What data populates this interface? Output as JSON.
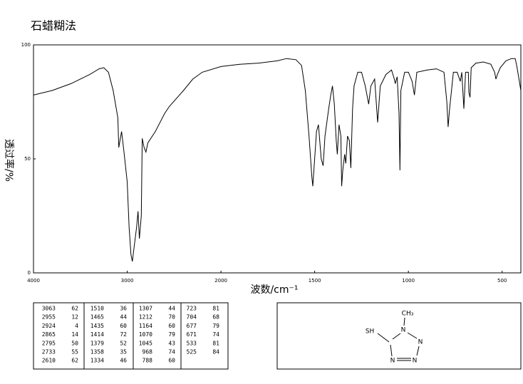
{
  "chart_data": {
    "type": "line",
    "title": "石蜡糊法",
    "x_label": "波数/cm⁻¹",
    "y_label": "透过率/%",
    "color": "#000000",
    "xlim": [
      4000,
      400
    ],
    "xticks": [
      4000,
      3000,
      2000,
      1500,
      1000,
      500
    ],
    "ylim": [
      0,
      100
    ],
    "yticks": [
      0,
      50,
      100
    ],
    "x": [
      4000,
      3800,
      3600,
      3400,
      3300,
      3250,
      3200,
      3150,
      3100,
      3090,
      3060,
      3040,
      3000,
      2980,
      2960,
      2945,
      2930,
      2900,
      2885,
      2870,
      2850,
      2840,
      2820,
      2800,
      2780,
      2700,
      2650,
      2600,
      2550,
      2400,
      2300,
      2200,
      2000,
      1900,
      1800,
      1700,
      1650,
      1600,
      1570,
      1550,
      1530,
      1515,
      1510,
      1500,
      1490,
      1480,
      1470,
      1465,
      1455,
      1445,
      1435,
      1425,
      1414,
      1405,
      1395,
      1385,
      1379,
      1370,
      1360,
      1356,
      1350,
      1340,
      1334,
      1325,
      1315,
      1307,
      1298,
      1290,
      1270,
      1250,
      1230,
      1212,
      1200,
      1180,
      1164,
      1150,
      1120,
      1090,
      1075,
      1070,
      1060,
      1050,
      1045,
      1040,
      1020,
      1000,
      980,
      968,
      955,
      900,
      850,
      810,
      795,
      788,
      780,
      760,
      740,
      723,
      715,
      704,
      695,
      680,
      677,
      671,
      665,
      640,
      600,
      560,
      540,
      533,
      525,
      510,
      480,
      450,
      430,
      420,
      400
    ],
    "values": [
      78,
      80,
      83,
      87,
      89.5,
      90,
      88,
      80,
      68,
      55,
      62,
      55,
      40,
      20,
      8,
      5,
      10,
      20,
      27,
      15,
      25,
      59,
      55,
      53,
      57,
      62,
      66,
      70,
      73,
      80,
      85,
      88,
      90.5,
      91.5,
      92,
      93,
      94,
      93.5,
      91,
      80,
      60,
      42,
      38,
      50,
      62,
      65,
      55,
      50,
      47,
      60,
      66,
      72,
      78,
      82,
      74,
      58,
      52,
      65,
      60,
      38,
      45,
      52,
      48,
      60,
      58,
      46,
      72,
      82,
      88,
      88,
      82,
      74,
      82,
      85,
      66,
      82,
      87,
      89,
      85,
      83,
      86,
      70,
      45,
      80,
      88,
      88,
      84,
      78,
      88,
      89,
      89.5,
      88,
      75,
      64,
      72,
      88,
      88,
      84,
      88,
      72,
      88,
      88,
      79,
      77,
      90,
      92,
      92.5,
      91.5,
      88,
      85,
      87,
      90,
      93,
      94,
      94,
      90,
      80
    ]
  },
  "peak_table": {
    "columns": [
      [
        [
          3063,
          62
        ],
        [
          2955,
          12
        ],
        [
          2924,
          4
        ],
        [
          2865,
          14
        ],
        [
          2795,
          50
        ],
        [
          2733,
          55
        ],
        [
          2610,
          62
        ]
      ],
      [
        [
          1510,
          36
        ],
        [
          1465,
          44
        ],
        [
          1435,
          60
        ],
        [
          1414,
          72
        ],
        [
          1379,
          52
        ],
        [
          1358,
          35
        ],
        [
          1334,
          46
        ]
      ],
      [
        [
          1307,
          44
        ],
        [
          1212,
          70
        ],
        [
          1164,
          60
        ],
        [
          1070,
          79
        ],
        [
          1045,
          43
        ],
        [
          968,
          74
        ],
        [
          788,
          60
        ]
      ],
      [
        [
          723,
          81
        ],
        [
          704,
          68
        ],
        [
          677,
          79
        ],
        [
          671,
          74
        ],
        [
          533,
          81
        ],
        [
          525,
          84
        ]
      ]
    ]
  },
  "structure": {
    "atoms": [
      "CH₃",
      "N",
      "SH",
      "N",
      "N",
      "N"
    ]
  }
}
